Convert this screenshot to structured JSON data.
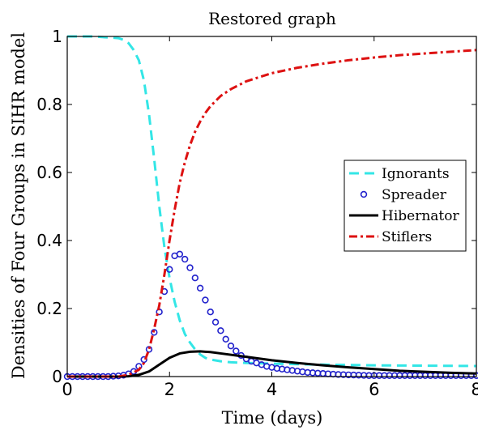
{
  "chart_data": {
    "type": "line",
    "title": "Restored graph",
    "xlabel": "Time (days)",
    "ylabel": "Densities of Four Groups in SIHR model",
    "xlim": [
      0,
      8
    ],
    "ylim": [
      0,
      1
    ],
    "xticks": [
      0,
      2,
      4,
      6,
      8
    ],
    "yticks": [
      0,
      0.2,
      0.4,
      0.6,
      0.8,
      1
    ],
    "xtick_labels": [
      "0",
      "2",
      "4",
      "6",
      "8"
    ],
    "ytick_labels": [
      "0",
      "0.2",
      "0.4",
      "0.6",
      "0.8",
      "1"
    ],
    "grid": false,
    "legend_position": "right",
    "series": [
      {
        "name": "Ignorants",
        "style": "dashed",
        "color": "#33e6e6",
        "x": [
          0,
          0.5,
          1.0,
          1.1,
          1.2,
          1.3,
          1.4,
          1.5,
          1.6,
          1.7,
          1.8,
          1.9,
          2.0,
          2.1,
          2.2,
          2.3,
          2.4,
          2.5,
          2.6,
          2.7,
          2.8,
          3.0,
          3.2,
          3.5,
          4.0,
          5.0,
          6.0,
          7.0,
          8.0
        ],
        "y": [
          1.0,
          1.0,
          0.995,
          0.99,
          0.98,
          0.96,
          0.93,
          0.87,
          0.77,
          0.64,
          0.5,
          0.38,
          0.29,
          0.22,
          0.165,
          0.125,
          0.1,
          0.08,
          0.065,
          0.055,
          0.05,
          0.045,
          0.042,
          0.04,
          0.038,
          0.035,
          0.033,
          0.032,
          0.031
        ]
      },
      {
        "name": "Spreader",
        "style": "circles",
        "color": "#2222cc",
        "x": [
          0,
          0.1,
          0.2,
          0.3,
          0.4,
          0.5,
          0.6,
          0.7,
          0.8,
          0.9,
          1.0,
          1.1,
          1.2,
          1.3,
          1.4,
          1.5,
          1.6,
          1.7,
          1.8,
          1.9,
          2.0,
          2.1,
          2.2,
          2.3,
          2.4,
          2.5,
          2.6,
          2.7,
          2.8,
          2.9,
          3.0,
          3.1,
          3.2,
          3.3,
          3.4,
          3.5,
          3.6,
          3.7,
          3.8,
          3.9,
          4.0,
          4.1,
          4.2,
          4.3,
          4.4,
          4.5,
          4.6,
          4.7,
          4.8,
          4.9,
          5.0,
          5.1,
          5.2,
          5.3,
          5.4,
          5.5,
          5.6,
          5.7,
          5.8,
          5.9,
          6.0,
          6.1,
          6.2,
          6.3,
          6.4,
          6.5,
          6.6,
          6.7,
          6.8,
          6.9,
          7.0,
          7.1,
          7.2,
          7.3,
          7.4,
          7.5,
          7.6,
          7.7,
          7.8,
          7.9,
          8.0
        ],
        "y": [
          0.0,
          0.0,
          0.0,
          0.0,
          0.0,
          0.0,
          0.0,
          0.0,
          0.0,
          0.001,
          0.002,
          0.004,
          0.008,
          0.015,
          0.03,
          0.05,
          0.08,
          0.13,
          0.19,
          0.25,
          0.315,
          0.355,
          0.36,
          0.345,
          0.32,
          0.29,
          0.26,
          0.225,
          0.19,
          0.16,
          0.135,
          0.11,
          0.09,
          0.075,
          0.062,
          0.052,
          0.045,
          0.04,
          0.035,
          0.03,
          0.027,
          0.024,
          0.022,
          0.02,
          0.018,
          0.016,
          0.014,
          0.012,
          0.011,
          0.01,
          0.009,
          0.008,
          0.007,
          0.006,
          0.0055,
          0.005,
          0.0045,
          0.004,
          0.0035,
          0.003,
          0.003,
          0.003,
          0.003,
          0.003,
          0.003,
          0.003,
          0.003,
          0.003,
          0.003,
          0.003,
          0.003,
          0.003,
          0.003,
          0.003,
          0.003,
          0.003,
          0.003,
          0.003,
          0.003,
          0.003,
          0.003
        ]
      },
      {
        "name": "Hibernator",
        "style": "solid",
        "color": "#000000",
        "x": [
          0,
          1.0,
          1.2,
          1.4,
          1.6,
          1.8,
          2.0,
          2.2,
          2.4,
          2.6,
          2.8,
          3.0,
          3.5,
          4.0,
          4.5,
          5.0,
          5.5,
          6.0,
          6.5,
          7.0,
          7.5,
          8.0
        ],
        "y": [
          0.0,
          0.0,
          0.001,
          0.005,
          0.015,
          0.035,
          0.055,
          0.068,
          0.073,
          0.074,
          0.072,
          0.068,
          0.058,
          0.048,
          0.04,
          0.033,
          0.027,
          0.022,
          0.017,
          0.014,
          0.011,
          0.009
        ]
      },
      {
        "name": "Stiflers",
        "style": "dashdot",
        "color": "#dd1111",
        "x": [
          0,
          1.0,
          1.2,
          1.4,
          1.5,
          1.6,
          1.7,
          1.8,
          1.9,
          2.0,
          2.1,
          2.2,
          2.3,
          2.4,
          2.5,
          2.6,
          2.7,
          2.8,
          3.0,
          3.2,
          3.5,
          4.0,
          4.5,
          5.0,
          5.5,
          6.0,
          6.5,
          7.0,
          7.5,
          8.0
        ],
        "y": [
          0.0,
          0.0,
          0.005,
          0.02,
          0.04,
          0.08,
          0.14,
          0.21,
          0.3,
          0.4,
          0.49,
          0.57,
          0.63,
          0.68,
          0.72,
          0.75,
          0.775,
          0.795,
          0.825,
          0.845,
          0.868,
          0.892,
          0.908,
          0.92,
          0.93,
          0.938,
          0.945,
          0.95,
          0.955,
          0.96
        ]
      }
    ]
  }
}
